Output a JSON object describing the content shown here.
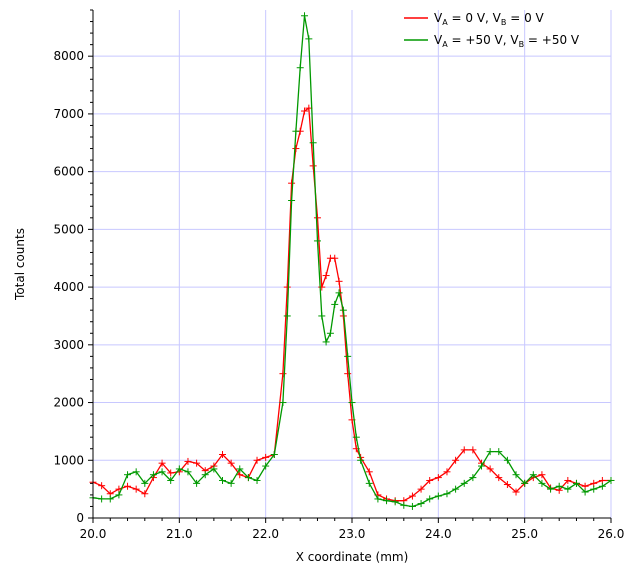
{
  "chart_data": {
    "type": "line",
    "xlabel": "X coordinate (mm)",
    "ylabel": "Total counts",
    "xlim": [
      20.0,
      26.0
    ],
    "ylim": [
      0,
      8800
    ],
    "xticks": [
      "20.0",
      "21.0",
      "22.0",
      "23.0",
      "24.0",
      "25.0",
      "26.0"
    ],
    "yticks": [
      "0",
      "1000",
      "2000",
      "3000",
      "4000",
      "5000",
      "6000",
      "7000",
      "8000"
    ],
    "grid": true,
    "legend_position": "top-right",
    "marker": "plus",
    "series": [
      {
        "name": "V_A = 0 V, V_B = 0 V",
        "legend_parts": [
          "V",
          "A",
          " = 0 V, V",
          "B",
          " = 0 V"
        ],
        "color": "#ff0000",
        "x": [
          20.0,
          20.1,
          20.2,
          20.3,
          20.4,
          20.5,
          20.6,
          20.7,
          20.8,
          20.9,
          21.0,
          21.1,
          21.2,
          21.3,
          21.4,
          21.5,
          21.6,
          21.7,
          21.8,
          21.9,
          22.0,
          22.1,
          22.2,
          22.25,
          22.3,
          22.35,
          22.4,
          22.45,
          22.5,
          22.55,
          22.6,
          22.65,
          22.7,
          22.75,
          22.8,
          22.85,
          22.9,
          22.95,
          23.0,
          23.05,
          23.1,
          23.2,
          23.3,
          23.4,
          23.5,
          23.6,
          23.7,
          23.8,
          23.9,
          24.0,
          24.1,
          24.2,
          24.3,
          24.4,
          24.5,
          24.6,
          24.7,
          24.8,
          24.9,
          25.0,
          25.1,
          25.2,
          25.3,
          25.4,
          25.5,
          25.6,
          25.7,
          25.8,
          25.9,
          26.0
        ],
        "y": [
          620,
          560,
          420,
          500,
          550,
          500,
          420,
          700,
          950,
          780,
          800,
          980,
          950,
          820,
          900,
          1100,
          950,
          750,
          700,
          1000,
          1050,
          1100,
          2500,
          4000,
          5800,
          6400,
          6700,
          7050,
          7100,
          6100,
          5200,
          4000,
          4200,
          4500,
          4500,
          4100,
          3500,
          2500,
          1700,
          1200,
          1050,
          800,
          400,
          330,
          300,
          300,
          380,
          500,
          650,
          700,
          800,
          1000,
          1180,
          1180,
          950,
          850,
          700,
          580,
          450,
          600,
          700,
          750,
          520,
          480,
          650,
          600,
          550,
          600,
          650,
          650
        ]
      },
      {
        "name": "V_A = +50 V, V_B = +50 V",
        "legend_parts": [
          "V",
          "A",
          " = +50 V, V",
          "B",
          " = +50 V"
        ],
        "color": "#009900",
        "x": [
          20.0,
          20.1,
          20.2,
          20.3,
          20.4,
          20.5,
          20.6,
          20.7,
          20.8,
          20.9,
          21.0,
          21.1,
          21.2,
          21.3,
          21.4,
          21.5,
          21.6,
          21.7,
          21.8,
          21.9,
          22.0,
          22.1,
          22.2,
          22.25,
          22.3,
          22.35,
          22.4,
          22.45,
          22.5,
          22.55,
          22.6,
          22.65,
          22.7,
          22.75,
          22.8,
          22.85,
          22.9,
          22.95,
          23.0,
          23.05,
          23.1,
          23.2,
          23.3,
          23.4,
          23.5,
          23.6,
          23.7,
          23.8,
          23.9,
          24.0,
          24.1,
          24.2,
          24.3,
          24.4,
          24.5,
          24.6,
          24.7,
          24.8,
          24.9,
          25.0,
          25.1,
          25.2,
          25.3,
          25.4,
          25.5,
          25.6,
          25.7,
          25.8,
          25.9,
          26.0
        ],
        "y": [
          350,
          330,
          330,
          400,
          750,
          800,
          600,
          750,
          800,
          650,
          850,
          800,
          600,
          750,
          850,
          650,
          600,
          850,
          700,
          650,
          900,
          1100,
          2000,
          3500,
          5500,
          6700,
          7800,
          8700,
          8300,
          6500,
          4800,
          3500,
          3050,
          3200,
          3700,
          3900,
          3600,
          2800,
          2000,
          1400,
          1000,
          600,
          330,
          300,
          280,
          220,
          200,
          250,
          330,
          380,
          420,
          500,
          600,
          700,
          900,
          1150,
          1150,
          1000,
          750,
          600,
          750,
          600,
          500,
          550,
          500,
          600,
          450,
          500,
          550,
          650
        ]
      }
    ]
  }
}
